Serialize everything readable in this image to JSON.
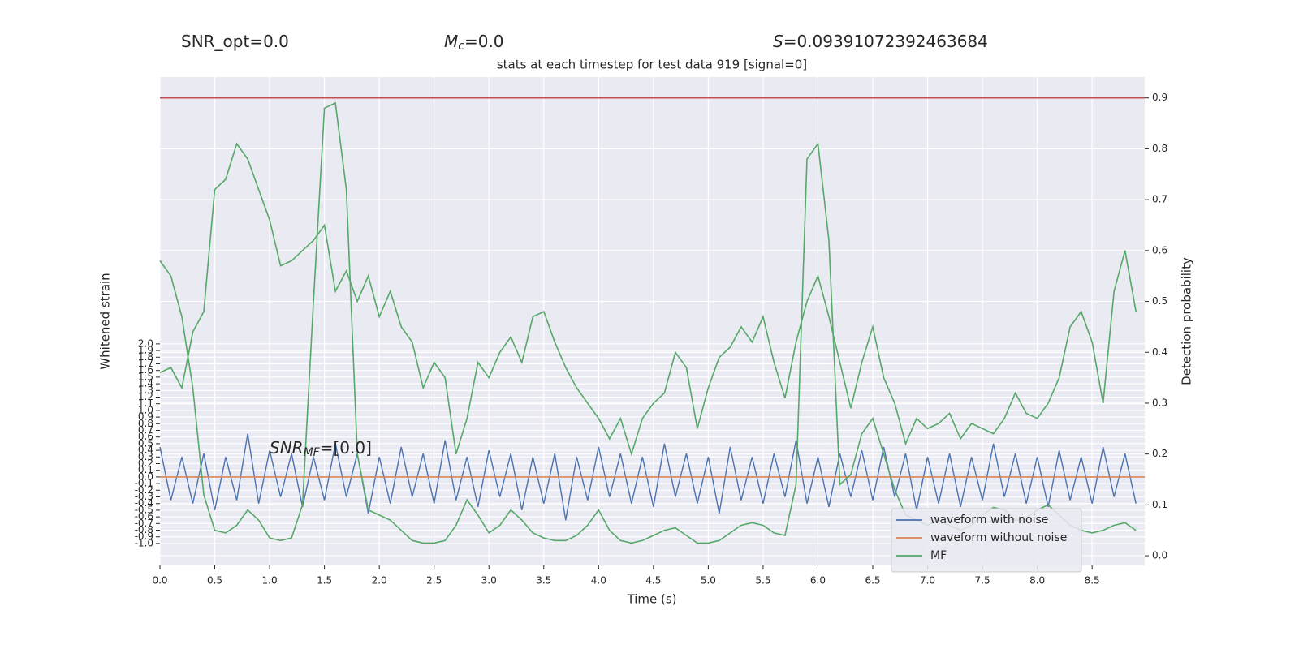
{
  "chart_data": {
    "type": "line",
    "title": "stats at each timestep for test data 919 [signal=0]",
    "annotations": [
      {
        "text": "SNR_opt=0.0"
      },
      {
        "symbol": "M",
        "subscript": "c",
        "text": "=0.0"
      },
      {
        "symbol": "S",
        "text": "=0.09391072392463684"
      },
      {
        "symbol": "SNR",
        "subscript": "MF",
        "text": "=[0.0]"
      }
    ],
    "xlabel": "Time (s)",
    "ylabel": "Whitened strain",
    "y2label": "Detection probability",
    "xlim": [
      0,
      8.98
    ],
    "ylim": [
      -1.33,
      6.01
    ],
    "y2lim": [
      -0.019,
      0.941
    ],
    "xticks": [
      {
        "value": 0,
        "label": "0.0"
      },
      0.5,
      {
        "value": 1,
        "label": "1.0"
      },
      1.5,
      {
        "value": 2,
        "label": "2.0"
      },
      2.5,
      {
        "value": 3,
        "label": "3.0"
      },
      3.5,
      {
        "value": 4,
        "label": "4.0"
      },
      4.5,
      {
        "value": 5,
        "label": "5.0"
      },
      5.5,
      {
        "value": 6,
        "label": "6.0"
      },
      6.5,
      {
        "value": 7,
        "label": "7.0"
      },
      7.5,
      {
        "value": 8,
        "label": "8.0"
      },
      8.5
    ],
    "yticks": [
      {
        "value": -1,
        "label": "-1.0"
      },
      -0.9,
      -0.8,
      -0.7,
      -0.6,
      -0.5,
      -0.4,
      -0.3,
      -0.2,
      -0.1,
      {
        "value": 0,
        "label": "0.0"
      },
      0.1,
      0.2,
      0.3,
      0.4,
      0.5,
      0.6,
      0.7,
      0.8,
      0.9,
      {
        "value": 1,
        "label": "1.0"
      },
      1.1,
      1.2,
      1.3,
      1.4,
      1.5,
      1.6,
      1.7,
      1.8,
      1.9,
      {
        "value": 2,
        "label": "2.0"
      }
    ],
    "y2ticks": [
      {
        "value": 0,
        "label": "0.0"
      },
      0.1,
      0.2,
      0.3,
      0.4,
      0.5,
      0.6,
      0.7,
      0.8,
      0.9
    ],
    "grid": true,
    "threshold": {
      "value": 0.9,
      "axis": "y2",
      "color": "#c44e52"
    },
    "legend": "lower right",
    "x": [
      0.0,
      0.1,
      0.2,
      0.3,
      0.4,
      0.5,
      0.6,
      0.7,
      0.8,
      0.9,
      1.0,
      1.1,
      1.2,
      1.3,
      1.4,
      1.5,
      1.6,
      1.7,
      1.8,
      1.9,
      2.0,
      2.1,
      2.2,
      2.3,
      2.4,
      2.5,
      2.6,
      2.7,
      2.8,
      2.9,
      3.0,
      3.1,
      3.2,
      3.3,
      3.4,
      3.5,
      3.6,
      3.7,
      3.8,
      3.9,
      4.0,
      4.1,
      4.2,
      4.3,
      4.4,
      4.5,
      4.6,
      4.7,
      4.8,
      4.9,
      5.0,
      5.1,
      5.2,
      5.3,
      5.4,
      5.5,
      5.6,
      5.7,
      5.8,
      5.9,
      6.0,
      6.1,
      6.2,
      6.3,
      6.4,
      6.5,
      6.6,
      6.7,
      6.8,
      6.9,
      7.0,
      7.1,
      7.2,
      7.3,
      7.4,
      7.5,
      7.6,
      7.7,
      7.8,
      7.9,
      8.0,
      8.1,
      8.2,
      8.3,
      8.4,
      8.5,
      8.6,
      8.7,
      8.8,
      8.9
    ],
    "series": [
      {
        "name": "waveform with noise",
        "color": "#4c72b0",
        "values": [
          0.45,
          -0.35,
          0.3,
          -0.4,
          0.35,
          -0.5,
          0.3,
          -0.35,
          0.65,
          -0.4,
          0.4,
          -0.3,
          0.35,
          -0.45,
          0.3,
          -0.35,
          0.5,
          -0.3,
          0.35,
          -0.55,
          0.3,
          -0.4,
          0.45,
          -0.3,
          0.35,
          -0.4,
          0.55,
          -0.35,
          0.3,
          -0.45,
          0.4,
          -0.3,
          0.35,
          -0.5,
          0.3,
          -0.4,
          0.35,
          -0.65,
          0.3,
          -0.35,
          0.45,
          -0.3,
          0.35,
          -0.4,
          0.3,
          -0.45,
          0.5,
          -0.3,
          0.35,
          -0.4,
          0.3,
          -0.55,
          0.45,
          -0.35,
          0.3,
          -0.4,
          0.35,
          -0.3,
          0.55,
          -0.4,
          0.3,
          -0.45,
          0.35,
          -0.3,
          0.4,
          -0.35,
          0.45,
          -0.3,
          0.35,
          -0.5,
          0.3,
          -0.4,
          0.35,
          -0.45,
          0.3,
          -0.35,
          0.5,
          -0.3,
          0.35,
          -0.4,
          0.3,
          -0.45,
          0.4,
          -0.35,
          0.3,
          -0.4,
          0.45,
          -0.3,
          0.35,
          -0.4
        ]
      },
      {
        "name": "waveform without noise",
        "color": "#dd8452",
        "x": [
          0,
          8.98
        ],
        "values": [
          0,
          0
        ]
      },
      {
        "name": "MF",
        "color": "#55a868",
        "axis": "y2",
        "values": [
          0.58,
          0.55,
          0.47,
          0.33,
          0.12,
          0.05,
          0.045,
          0.06,
          0.09,
          0.07,
          0.035,
          0.03,
          0.035,
          0.1,
          0.5,
          0.88,
          0.89,
          0.72,
          0.2,
          0.09,
          0.08,
          0.07,
          0.05,
          0.03,
          0.025,
          0.025,
          0.03,
          0.06,
          0.11,
          0.08,
          0.045,
          0.06,
          0.09,
          0.07,
          0.045,
          0.035,
          0.03,
          0.03,
          0.04,
          0.06,
          0.09,
          0.05,
          0.03,
          0.025,
          0.03,
          0.04,
          0.05,
          0.055,
          0.04,
          0.025,
          0.025,
          0.03,
          0.045,
          0.06,
          0.065,
          0.06,
          0.045,
          0.04,
          0.14,
          0.78,
          0.81,
          0.62,
          0.14,
          0.16,
          0.24,
          0.27,
          0.2,
          0.13,
          0.08,
          0.07,
          0.06,
          0.07,
          0.06,
          0.05,
          0.06,
          0.08,
          0.095,
          0.09,
          0.07,
          0.075,
          0.09,
          0.1,
          0.08,
          0.06,
          0.05,
          0.045,
          0.05,
          0.06,
          0.065,
          0.05
        ]
      },
      {
        "color": "#55a868",
        "axis": "y2",
        "values": [
          0.36,
          0.37,
          0.33,
          0.44,
          0.48,
          0.72,
          0.74,
          0.81,
          0.78,
          0.72,
          0.66,
          0.57,
          0.58,
          0.6,
          0.62,
          0.65,
          0.52,
          0.56,
          0.5,
          0.55,
          0.47,
          0.52,
          0.45,
          0.42,
          0.33,
          0.38,
          0.35,
          0.2,
          0.27,
          0.38,
          0.35,
          0.4,
          0.43,
          0.38,
          0.47,
          0.48,
          0.42,
          0.37,
          0.33,
          0.3,
          0.27,
          0.23,
          0.27,
          0.2,
          0.27,
          0.3,
          0.32,
          0.4,
          0.37,
          0.25,
          0.33,
          0.39,
          0.41,
          0.45,
          0.42,
          0.47,
          0.38,
          0.31,
          0.42,
          0.5,
          0.55,
          0.47,
          0.38,
          0.29,
          0.38,
          0.45,
          0.35,
          0.3,
          0.22,
          0.27,
          0.25,
          0.26,
          0.28,
          0.23,
          0.26,
          0.25,
          0.24,
          0.27,
          0.32,
          0.28,
          0.27,
          0.3,
          0.35,
          0.45,
          0.48,
          0.42,
          0.3,
          0.52,
          0.6,
          0.48
        ]
      }
    ]
  }
}
